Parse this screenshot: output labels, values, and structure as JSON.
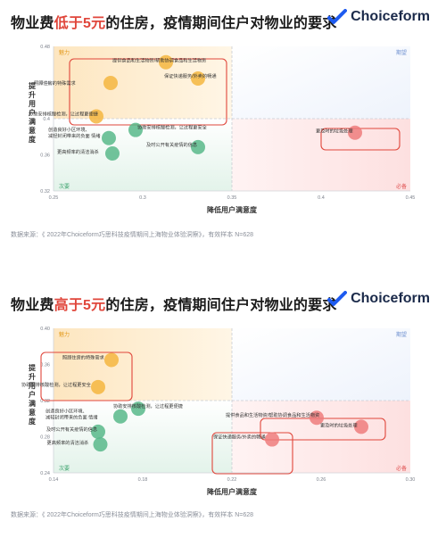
{
  "brand": {
    "name": "Choiceform"
  },
  "chart_data": [
    {
      "type": "scatter",
      "title_parts": {
        "pre": "物业费",
        "highlight": "低于5元",
        "post": "的住房，疫情期间住户对物业的要求"
      },
      "xlabel": "降低用户满意度",
      "ylabel": "提升用户满意度",
      "xlim": [
        0.25,
        0.45
      ],
      "ylim": [
        0.32,
        0.48
      ],
      "x_ticks": [
        "0.25",
        "0.3",
        "0.35",
        "0.4",
        "0.45"
      ],
      "y_ticks": [
        "0.32",
        "0.36",
        "0.4",
        "0.44",
        "0.48"
      ],
      "divider": {
        "x": 0.35,
        "y": 0.4
      },
      "quadrants": {
        "top_left": "魅力",
        "top_right": "期望",
        "bottom_left": "次要",
        "bottom_right": "必备"
      },
      "points": [
        {
          "label": "提供食品和生活物资/帮助协调食品和生活物资",
          "x": 0.313,
          "y": 0.4625,
          "group": "top_left"
        },
        {
          "label": "保证快递服务/外卖的畅通",
          "x": 0.331,
          "y": 0.4445,
          "group": "top_left"
        },
        {
          "label": "照顾住房的特殊需求",
          "x": 0.282,
          "y": 0.4395,
          "group": "top_left"
        },
        {
          "label": "协助安排核酸检测，让过程更便捷",
          "x": 0.274,
          "y": 0.4025,
          "group": "top_left"
        },
        {
          "label": "协助安排核酸检测，让过程更安全",
          "x": 0.296,
          "y": 0.3875,
          "group": "bottom_left"
        },
        {
          "label": "创造良好小区环境、减轻封闭带来的负面 情绪",
          "x": 0.281,
          "y": 0.3785,
          "group": "bottom_left"
        },
        {
          "label": "及时公开有关疫情的信息",
          "x": 0.331,
          "y": 0.3685,
          "group": "bottom_left"
        },
        {
          "label": "更高频率的清洁消杀",
          "x": 0.283,
          "y": 0.3615,
          "group": "bottom_left"
        },
        {
          "label": "更及时的垃圾处理",
          "x": 0.419,
          "y": 0.3845,
          "group": "bottom_right"
        }
      ],
      "source": "数据来源：《 2022年Choiceform巧思科技疫情期间上海物业体验洞察》，有效样本 N=628"
    },
    {
      "type": "scatter",
      "title_parts": {
        "pre": "物业费",
        "highlight": "高于5元",
        "post": "的住房，疫情期间住户对物业的要求"
      },
      "xlabel": "降低用户满意度",
      "ylabel": "提升用户满意度",
      "xlim": [
        0.14,
        0.3
      ],
      "ylim": [
        0.24,
        0.4
      ],
      "x_ticks": [
        "0.14",
        "0.18",
        "0.22",
        "0.26",
        "0.30"
      ],
      "y_ticks": [
        "0.24",
        "0.28",
        "0.32",
        "0.36",
        "0.40"
      ],
      "divider": {
        "x": 0.22,
        "y": 0.32
      },
      "quadrants": {
        "top_left": "魅力",
        "top_right": "期望",
        "bottom_left": "次要",
        "bottom_right": "必备"
      },
      "points": [
        {
          "label": "照顾住房的特殊需求",
          "x": 0.166,
          "y": 0.365,
          "group": "top_left"
        },
        {
          "label": "协助安排核酸检测，让过程更安全",
          "x": 0.16,
          "y": 0.335,
          "group": "top_left"
        },
        {
          "label": "协助安排核酸检测，让过程更便捷",
          "x": 0.178,
          "y": 0.311,
          "group": "bottom_left"
        },
        {
          "label": "创造良好小区环境、减轻封闭带来的负面 情绪",
          "x": 0.17,
          "y": 0.3025,
          "group": "bottom_left"
        },
        {
          "label": "及时公开有关疫情的信息",
          "x": 0.16,
          "y": 0.2855,
          "group": "bottom_left"
        },
        {
          "label": "更高频率的清洁消杀",
          "x": 0.161,
          "y": 0.2715,
          "group": "bottom_left"
        },
        {
          "label": "提供食品和生活物资/帮助协调食品和生活物资",
          "x": 0.258,
          "y": 0.301,
          "group": "bottom_right"
        },
        {
          "label": "更及时的垃圾处理",
          "x": 0.278,
          "y": 0.291,
          "group": "bottom_right"
        },
        {
          "label": "保证快递服务/外卖的畅通",
          "x": 0.238,
          "y": 0.277,
          "group": "bottom_right"
        }
      ],
      "source": "数据来源：《 2022年Choiceform巧思科技疫情期间上海物业体验洞察》，有效样本 N=628"
    }
  ]
}
